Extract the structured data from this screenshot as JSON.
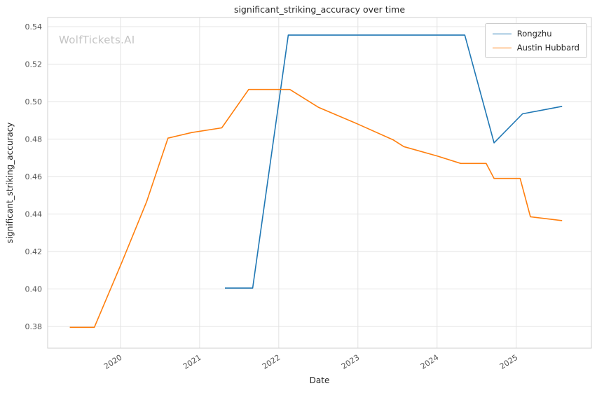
{
  "chart_data": {
    "type": "line",
    "title": "significant_striking_accuracy over time",
    "xlabel": "Date",
    "ylabel": "significant_striking_accuracy",
    "watermark": "WolfTickets.AI",
    "legend_position": "upper right",
    "grid": true,
    "xlim": [
      2019.08,
      2025.95
    ],
    "ylim": [
      0.3684,
      0.5449
    ],
    "xticks": [
      2020,
      2021,
      2022,
      2023,
      2024,
      2025
    ],
    "xtick_labels": [
      "2020",
      "2021",
      "2022",
      "2023",
      "2024",
      "2025"
    ],
    "yticks": [
      0.38,
      0.4,
      0.42,
      0.44,
      0.46,
      0.48,
      0.5,
      0.52,
      0.54
    ],
    "ytick_labels": [
      "0.38",
      "0.40",
      "0.42",
      "0.44",
      "0.46",
      "0.48",
      "0.50",
      "0.52",
      "0.54"
    ],
    "colors": {
      "grid": "#e3e3e3",
      "spine": "#cfcfcf",
      "tick_label": "#555555",
      "text": "#262626",
      "watermark": "#c4c4c4",
      "series_blue": "#1f77b4",
      "series_orange": "#ff7f0e"
    },
    "series": [
      {
        "name": "Rongzhu",
        "color": "#1f77b4",
        "points": [
          [
            2021.32,
            0.4005
          ],
          [
            2021.67,
            0.4005
          ],
          [
            2022.12,
            0.5355
          ],
          [
            2024.35,
            0.5355
          ],
          [
            2024.72,
            0.478
          ],
          [
            2025.08,
            0.4935
          ],
          [
            2025.58,
            0.4975
          ]
        ]
      },
      {
        "name": "Austin Hubbard",
        "color": "#ff7f0e",
        "points": [
          [
            2019.36,
            0.3795
          ],
          [
            2019.67,
            0.3795
          ],
          [
            2020.02,
            0.4145
          ],
          [
            2020.33,
            0.4465
          ],
          [
            2020.6,
            0.4805
          ],
          [
            2020.9,
            0.4835
          ],
          [
            2021.28,
            0.486
          ],
          [
            2021.62,
            0.5065
          ],
          [
            2022.14,
            0.5065
          ],
          [
            2022.5,
            0.497
          ],
          [
            2023.0,
            0.488
          ],
          [
            2023.45,
            0.4795
          ],
          [
            2023.58,
            0.476
          ],
          [
            2024.0,
            0.471
          ],
          [
            2024.3,
            0.467
          ],
          [
            2024.62,
            0.467
          ],
          [
            2024.72,
            0.459
          ],
          [
            2025.05,
            0.459
          ],
          [
            2025.18,
            0.4385
          ],
          [
            2025.58,
            0.4365
          ]
        ]
      }
    ]
  }
}
